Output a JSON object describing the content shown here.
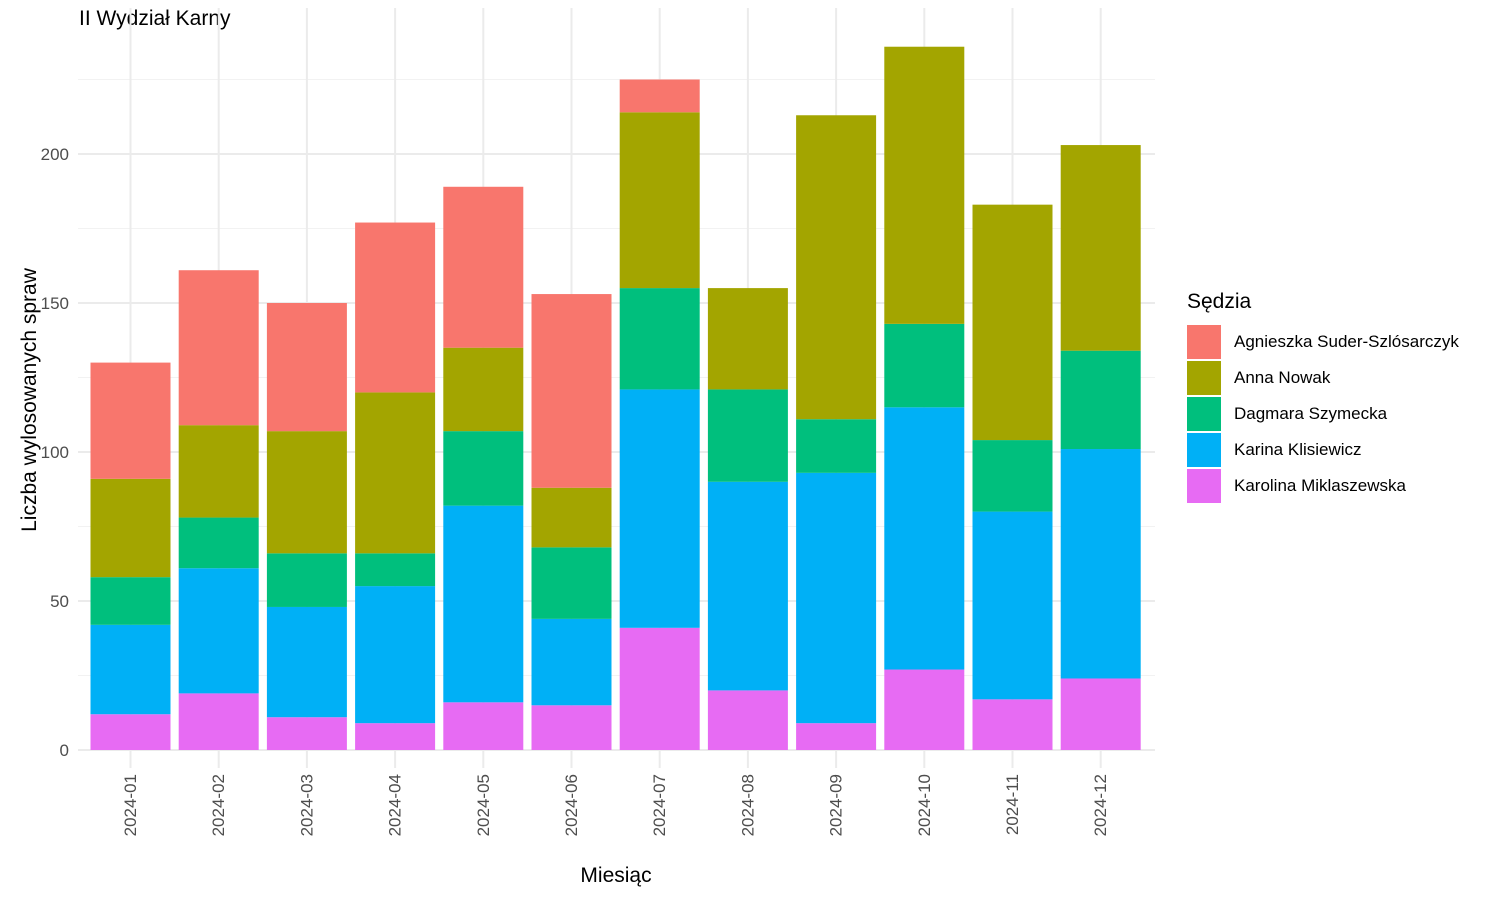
{
  "chart_data": {
    "type": "bar",
    "stacked": true,
    "title": "II Wydział Karny",
    "xlabel": "Miesiąc",
    "ylabel": "Liczba wylosowanych spraw",
    "ylim": [
      0,
      240
    ],
    "yticks": [
      0,
      50,
      100,
      150,
      200
    ],
    "grid": true,
    "legend_title": "Sędzia",
    "legend_position": "right",
    "categories": [
      "2024-01",
      "2024-02",
      "2024-03",
      "2024-04",
      "2024-05",
      "2024-06",
      "2024-07",
      "2024-08",
      "2024-09",
      "2024-10",
      "2024-11",
      "2024-12"
    ],
    "series": [
      {
        "name": "Agnieszka Suder-Szlósarczyk",
        "color": "#F8766D",
        "values": [
          39,
          52,
          43,
          57,
          54,
          65,
          11,
          0,
          0,
          0,
          0,
          0
        ]
      },
      {
        "name": "Anna Nowak",
        "color": "#A3A500",
        "values": [
          33,
          31,
          41,
          54,
          28,
          20,
          59,
          34,
          102,
          93,
          79,
          69
        ]
      },
      {
        "name": "Dagmara Szymecka",
        "color": "#00BF7D",
        "values": [
          16,
          17,
          18,
          11,
          25,
          24,
          34,
          31,
          18,
          28,
          24,
          33
        ]
      },
      {
        "name": "Karina Klisiewicz",
        "color": "#00B0F6",
        "values": [
          30,
          42,
          37,
          46,
          66,
          29,
          80,
          70,
          84,
          88,
          63,
          77
        ]
      },
      {
        "name": "Karolina Miklaszewska",
        "color": "#E76BF3",
        "values": [
          12,
          19,
          11,
          9,
          16,
          15,
          41,
          20,
          9,
          27,
          17,
          24
        ]
      }
    ]
  }
}
